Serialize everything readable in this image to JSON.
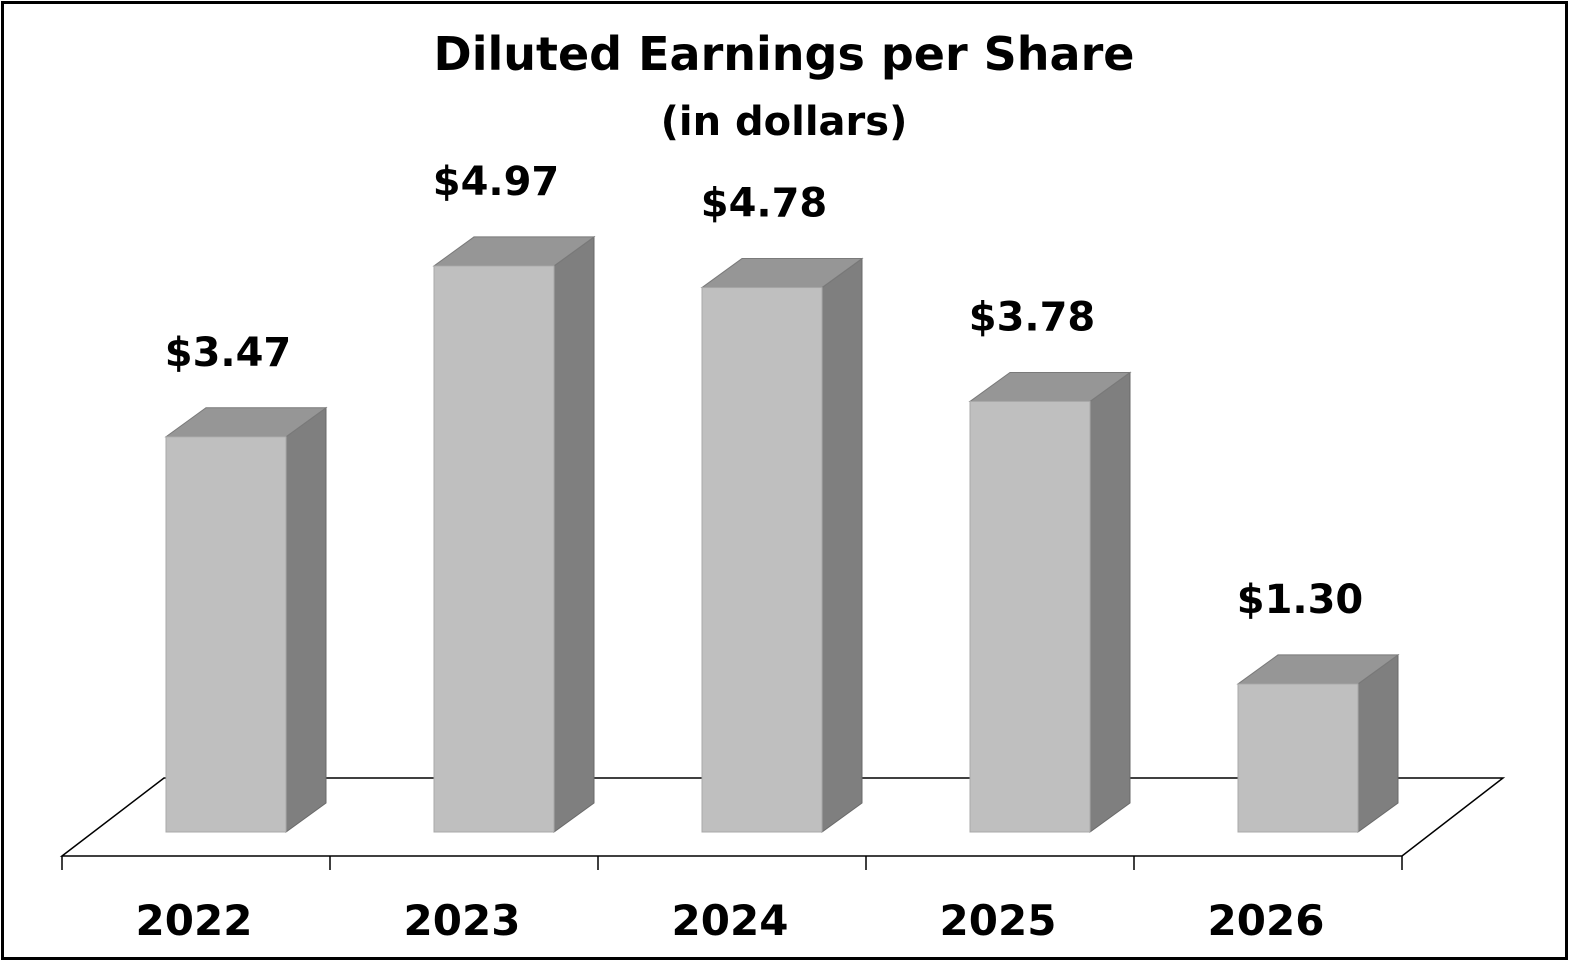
{
  "chart_data": {
    "type": "bar",
    "style": "3d-column",
    "title": "Diluted Earnings per Share",
    "subtitle": "(in dollars)",
    "categories": [
      "2022",
      "2023",
      "2024",
      "2025",
      "2026"
    ],
    "values": [
      3.47,
      4.97,
      4.78,
      3.78,
      1.3
    ],
    "data_labels": [
      "$3.47",
      "$4.97",
      "$4.78",
      "$3.78",
      "$1.30"
    ],
    "ylim": [
      0,
      5.5
    ],
    "grid": false,
    "legend": "none",
    "colors": {
      "bar_front": "#bfbfbf",
      "bar_top": "#969696",
      "bar_side": "#7f7f7f",
      "floor_line": "#000000",
      "border": "#000000"
    }
  }
}
